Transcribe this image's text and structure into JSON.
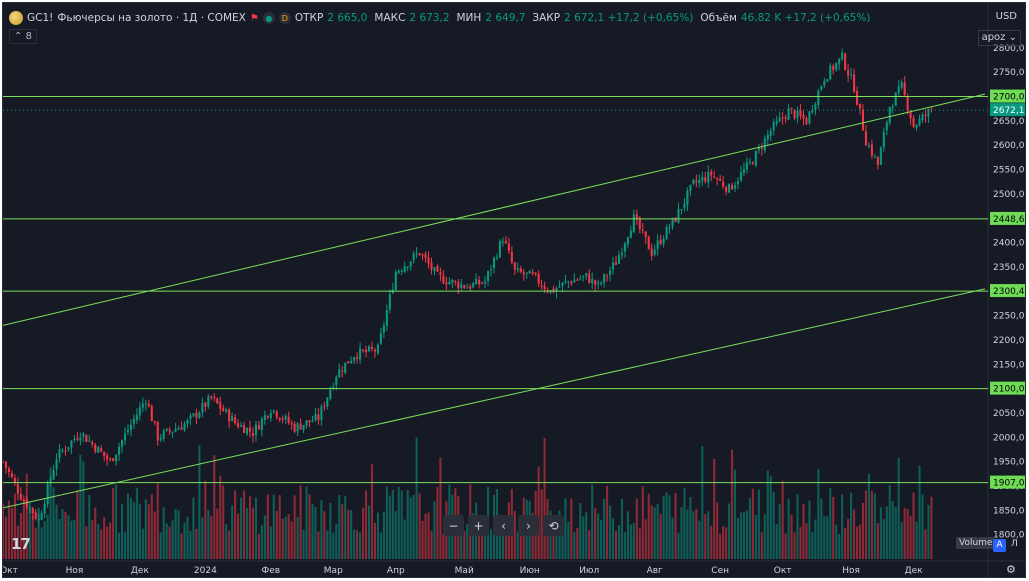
{
  "header": {
    "symbol": "GC1!",
    "description": "Фьючерсы на золото · 1Д · COMEX",
    "source_badge": "D",
    "ohlc": [
      {
        "label": "ОТКР",
        "value": "2 665,0"
      },
      {
        "label": "МАКС",
        "value": "2 673,2"
      },
      {
        "label": "МИН",
        "value": "2 649,7"
      },
      {
        "label": "ЗАКР",
        "value": "2 672,1 +17,2 (+0,65%)"
      }
    ],
    "volume_label": "Объём",
    "volume_value": "46,82 K +17,2 (+0,65%)",
    "indicator_count": "8",
    "currency": "USD",
    "scale_mode": "apoz"
  },
  "controls": {
    "zoom_out": "−",
    "zoom_in": "+",
    "scroll_left": "‹",
    "scroll_right": "›",
    "reset": "⟲"
  },
  "volume_badge": "Volume",
  "auto_button": "A",
  "log_button": "Л",
  "tv_logo_text": "17",
  "colors": {
    "background": "#161a25",
    "up": "#089981",
    "down": "#f23645",
    "lines": "#7de25a",
    "label_bg": "#6fdc56"
  },
  "chart_data": {
    "type": "candlestick",
    "ylim": [
      1750,
      2810
    ],
    "y_ticks": [
      1800,
      1850,
      1900,
      1950,
      2000,
      2050,
      2100,
      2150,
      2200,
      2250,
      2300,
      2350,
      2400,
      2450,
      2500,
      2550,
      2600,
      2650,
      2700,
      2750,
      2800
    ],
    "y_tick_labels": [
      "1800,0",
      "1850,0",
      "1900,0",
      "1950,0",
      "2000,0",
      "2050,0",
      "2100,0",
      "2150,0",
      "2200,0",
      "2250,0",
      "2300,0",
      "2350,0",
      "2400,0",
      "2450,0",
      "2500,0",
      "2550,0",
      "2600,0",
      "2650,0",
      "2700,0",
      "2750,0",
      "2800,0"
    ],
    "x_labels": [
      {
        "label": "Окт",
        "day": 2
      },
      {
        "label": "Ноя",
        "day": 24
      },
      {
        "label": "Дек",
        "day": 46
      },
      {
        "label": "2024",
        "day": 68
      },
      {
        "label": "Фев",
        "day": 90
      },
      {
        "label": "Мар",
        "day": 111
      },
      {
        "label": "Апр",
        "day": 132
      },
      {
        "label": "Май",
        "day": 155
      },
      {
        "label": "Июн",
        "day": 177
      },
      {
        "label": "Июл",
        "day": 197
      },
      {
        "label": "Авг",
        "day": 219
      },
      {
        "label": "Сен",
        "day": 241
      },
      {
        "label": "Окт",
        "day": 262
      },
      {
        "label": "Ноя",
        "day": 285
      },
      {
        "label": "Дек",
        "day": 306
      }
    ],
    "day_range": [
      0,
      330
    ],
    "close_anchors": [
      [
        0,
        1950
      ],
      [
        6,
        1880
      ],
      [
        12,
        1830
      ],
      [
        18,
        1960
      ],
      [
        26,
        2010
      ],
      [
        36,
        1950
      ],
      [
        48,
        2080
      ],
      [
        52,
        2000
      ],
      [
        62,
        2030
      ],
      [
        70,
        2080
      ],
      [
        78,
        2030
      ],
      [
        84,
        2010
      ],
      [
        90,
        2060
      ],
      [
        98,
        2020
      ],
      [
        106,
        2040
      ],
      [
        112,
        2130
      ],
      [
        118,
        2170
      ],
      [
        126,
        2180
      ],
      [
        132,
        2340
      ],
      [
        140,
        2380
      ],
      [
        146,
        2330
      ],
      [
        150,
        2320
      ],
      [
        156,
        2310
      ],
      [
        162,
        2320
      ],
      [
        168,
        2410
      ],
      [
        172,
        2340
      ],
      [
        178,
        2330
      ],
      [
        184,
        2300
      ],
      [
        190,
        2320
      ],
      [
        196,
        2330
      ],
      [
        200,
        2310
      ],
      [
        206,
        2360
      ],
      [
        212,
        2450
      ],
      [
        218,
        2380
      ],
      [
        226,
        2450
      ],
      [
        232,
        2520
      ],
      [
        238,
        2540
      ],
      [
        244,
        2510
      ],
      [
        252,
        2570
      ],
      [
        258,
        2630
      ],
      [
        264,
        2670
      ],
      [
        270,
        2650
      ],
      [
        276,
        2740
      ],
      [
        282,
        2780
      ],
      [
        286,
        2720
      ],
      [
        290,
        2610
      ],
      [
        294,
        2560
      ],
      [
        298,
        2680
      ],
      [
        302,
        2720
      ],
      [
        306,
        2640
      ],
      [
        312,
        2672
      ]
    ],
    "last_price": 2672.1,
    "horizontal_levels": [
      2700.0,
      2448.6,
      2300.4,
      2100.0,
      1907.0
    ],
    "horizontal_level_labels": [
      "2700,0",
      "2448,6",
      "2300,4",
      "2100,0",
      "1907,0"
    ],
    "last_price_label": "2672,1",
    "trend_lines": [
      {
        "x1": 0,
        "y1": 2230,
        "x2": 330,
        "y2": 2705
      },
      {
        "x1": 0,
        "y1": 1855,
        "x2": 330,
        "y2": 2305
      }
    ]
  }
}
